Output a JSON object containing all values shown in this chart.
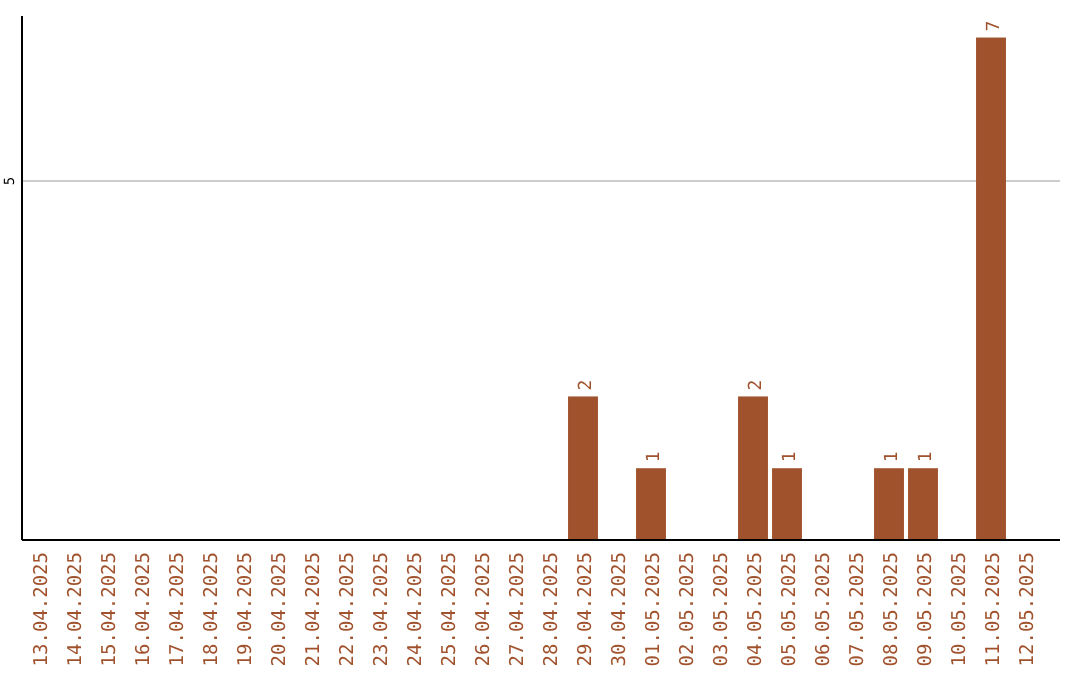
{
  "chart_data": {
    "type": "bar",
    "categories": [
      "13.04.2025",
      "14.04.2025",
      "15.04.2025",
      "16.04.2025",
      "17.04.2025",
      "18.04.2025",
      "19.04.2025",
      "20.04.2025",
      "21.04.2025",
      "22.04.2025",
      "23.04.2025",
      "24.04.2025",
      "25.04.2025",
      "26.04.2025",
      "27.04.2025",
      "28.04.2025",
      "29.04.2025",
      "30.04.2025",
      "01.05.2025",
      "02.05.2025",
      "03.05.2025",
      "04.05.2025",
      "05.05.2025",
      "06.05.2025",
      "07.05.2025",
      "08.05.2025",
      "09.05.2025",
      "10.05.2025",
      "11.05.2025",
      "12.05.2025"
    ],
    "values": [
      null,
      null,
      null,
      null,
      null,
      null,
      null,
      null,
      null,
      null,
      null,
      null,
      null,
      null,
      null,
      null,
      2,
      null,
      1,
      null,
      null,
      2,
      1,
      null,
      null,
      1,
      1,
      null,
      7,
      null
    ],
    "data_labels": true,
    "color": "#a0522d",
    "ylim": [
      0,
      7.3
    ],
    "yticks": [
      5
    ],
    "grid": "y"
  }
}
